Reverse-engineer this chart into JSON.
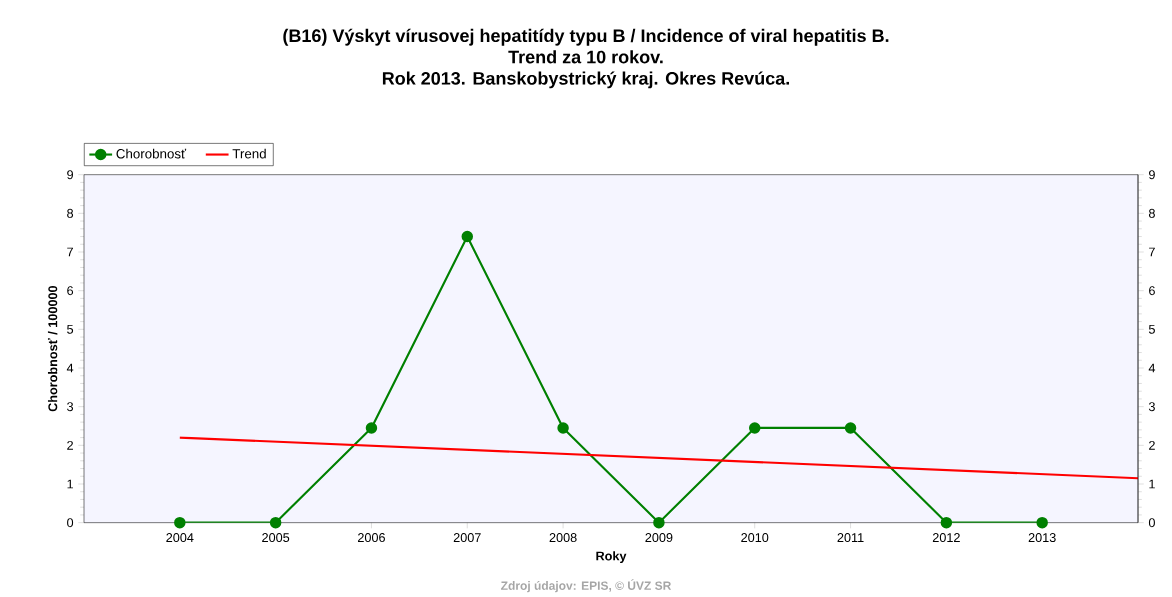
{
  "chart_data": {
    "type": "line",
    "title": "(B16) Výskyt vírusovej hepatitídy typu B / Incidence of viral hepatitis B.",
    "subtitle": "Trend za 10 rokov.",
    "annotations": [
      "Rok 2013. Banskobystrický kraj. Okres Revúca.",
      "Zdroj údajov: EPIS, © ÚVZ SR"
    ],
    "xlabel": "Roky",
    "ylabel": "Chorobnosť / 100000",
    "x": [
      2004,
      2005,
      2006,
      2007,
      2008,
      2009,
      2010,
      2011,
      2012,
      2013
    ],
    "series": [
      {
        "name": "Chorobnosť",
        "color": "#008000",
        "marker": "circle",
        "values": [
          0,
          0,
          2.45,
          7.4,
          2.45,
          0,
          2.45,
          2.45,
          0,
          0
        ]
      },
      {
        "name": "Trend",
        "color": "#ff0000",
        "marker": "none",
        "x": [
          2004,
          2014
        ],
        "values": [
          2.2,
          1.15
        ]
      }
    ],
    "xlim": [
      2003,
      2014
    ],
    "xticks": [
      2004,
      2005,
      2006,
      2007,
      2008,
      2009,
      2010,
      2011,
      2012,
      2013
    ],
    "ylim": [
      0,
      9
    ],
    "yticks": [
      0,
      1,
      2,
      3,
      4,
      5,
      6,
      7,
      8,
      9
    ],
    "y2lim": [
      0,
      9
    ],
    "y2ticks": [
      0,
      1,
      2,
      3,
      4,
      5,
      6,
      7,
      8,
      9
    ],
    "grid": false,
    "legend": "top left",
    "line_style": "solid"
  }
}
